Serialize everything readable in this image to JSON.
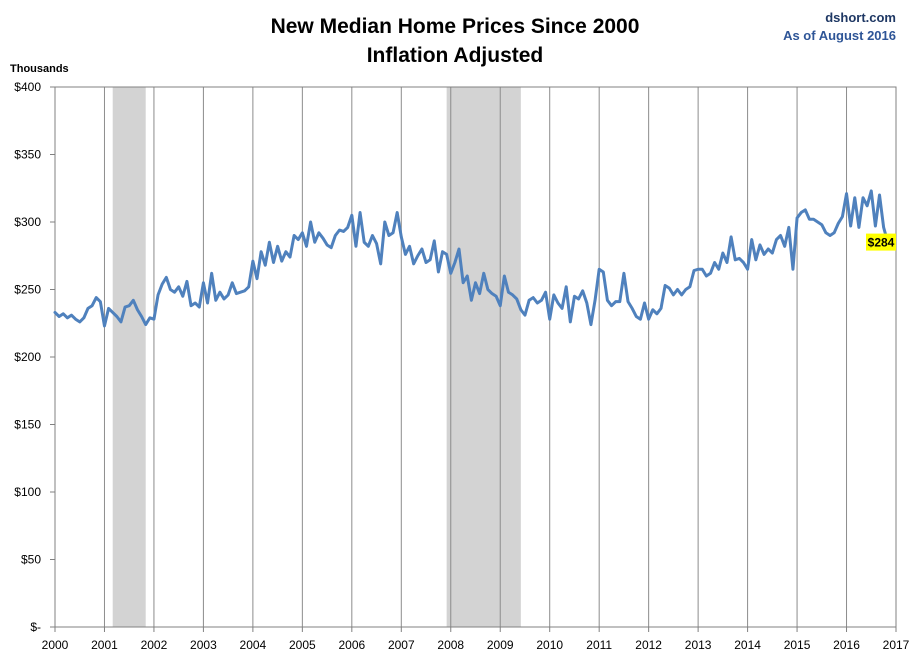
{
  "chart_data": {
    "type": "line",
    "title": [
      "New Median Home Prices Since 2000",
      "Inflation Adjusted"
    ],
    "source": [
      "dshort.com",
      "As of August 2016"
    ],
    "ylabel": "Thousands",
    "xlabel": "",
    "ylim": [
      0,
      400
    ],
    "xlim": [
      2000,
      2017
    ],
    "y_ticks": [
      0,
      50,
      100,
      150,
      200,
      250,
      300,
      350,
      400
    ],
    "y_tick_labels": [
      "$-",
      "$50",
      "$100",
      "$150",
      "$200",
      "$250",
      "$300",
      "$350",
      "$400"
    ],
    "x_ticks": [
      2000,
      2001,
      2002,
      2003,
      2004,
      2005,
      2006,
      2007,
      2008,
      2009,
      2010,
      2011,
      2012,
      2013,
      2014,
      2015,
      2016,
      2017
    ],
    "x_tick_labels": [
      "2000",
      "2001",
      "2002",
      "2003",
      "2004",
      "2005",
      "2006",
      "2007",
      "2008",
      "2009",
      "2010",
      "2011",
      "2012",
      "2013",
      "2014",
      "2015",
      "2016",
      "2017"
    ],
    "grid": "vertical",
    "recessions": [
      {
        "start": "2001-03",
        "end": "2001-11"
      },
      {
        "start": "2007-12",
        "end": "2009-06"
      }
    ],
    "line_color": "#4f81bd",
    "recession_color": "#d3d3d3",
    "callout": {
      "label": "$284",
      "value": 284,
      "background": "#ffff00"
    },
    "series": [
      {
        "start": "2000-01",
        "frequency": "monthly",
        "values": [
          233,
          230,
          232,
          229,
          231,
          228,
          226,
          229,
          236,
          238,
          244,
          241,
          223,
          236,
          233,
          230,
          226,
          237,
          238,
          242,
          235,
          230,
          224,
          229,
          228,
          246,
          254,
          259,
          250,
          248,
          252,
          245,
          256,
          238,
          240,
          237,
          255,
          240,
          262,
          242,
          248,
          243,
          246,
          255,
          247,
          248,
          249,
          252,
          271,
          258,
          278,
          268,
          285,
          270,
          282,
          271,
          278,
          274,
          290,
          287,
          292,
          282,
          300,
          285,
          292,
          288,
          283,
          281,
          290,
          294,
          293,
          296,
          305,
          282,
          307,
          285,
          282,
          290,
          284,
          269,
          300,
          290,
          292,
          307,
          289,
          276,
          282,
          269,
          275,
          280,
          270,
          272,
          286,
          263,
          278,
          276,
          262,
          270,
          280,
          255,
          260,
          242,
          255,
          247,
          262,
          250,
          247,
          245,
          238,
          260,
          248,
          246,
          243,
          235,
          231,
          242,
          244,
          240,
          242,
          248,
          228,
          246,
          240,
          236,
          252,
          226,
          245,
          243,
          249,
          240,
          224,
          242,
          265,
          263,
          242,
          238,
          241,
          241,
          262,
          241,
          236,
          230,
          228,
          240,
          228,
          235,
          232,
          236,
          253,
          251,
          246,
          250,
          246,
          250,
          252,
          264,
          265,
          265,
          260,
          262,
          270,
          265,
          277,
          270,
          289,
          272,
          273,
          270,
          265,
          287,
          272,
          283,
          276,
          280,
          277,
          287,
          290,
          282,
          296,
          265,
          303,
          307,
          309,
          302,
          302,
          300,
          298,
          292,
          290,
          292,
          299,
          304,
          321,
          297,
          318,
          296,
          318,
          312,
          323,
          297,
          320,
          296,
          285,
          284
        ]
      }
    ]
  }
}
